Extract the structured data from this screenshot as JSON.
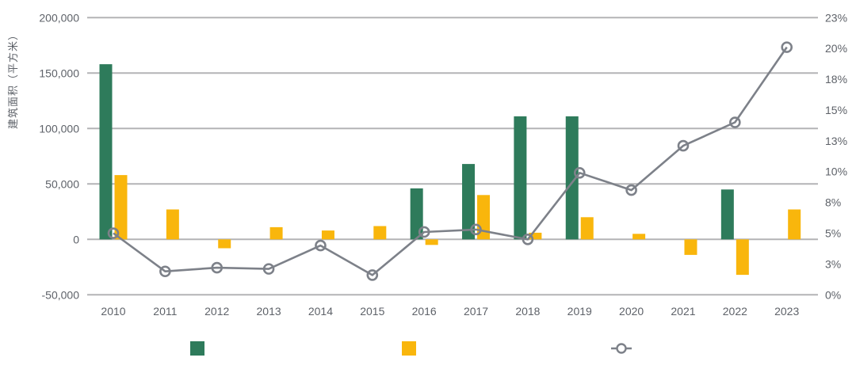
{
  "chart_data": {
    "type": "bar",
    "subtype": "grouped bars with dual-axis line overlay",
    "title": "",
    "categories": [
      "2010",
      "2011",
      "2012",
      "2013",
      "2014",
      "2015",
      "2016",
      "2017",
      "2018",
      "2019",
      "2020",
      "2021",
      "2022",
      "2023"
    ],
    "series": [
      {
        "name": "green-bars",
        "type": "bar",
        "axis": "left",
        "color": "#2E7B5B",
        "values": [
          158000,
          null,
          null,
          null,
          null,
          null,
          46000,
          68000,
          111000,
          111000,
          null,
          null,
          45000,
          null
        ]
      },
      {
        "name": "yellow-bars",
        "type": "bar",
        "axis": "left",
        "color": "#F9B60C",
        "values": [
          58000,
          27000,
          -8000,
          11000,
          8000,
          12000,
          -5000,
          40000,
          6000,
          20000,
          5000,
          -14000,
          -32000,
          27000
        ]
      },
      {
        "name": "percent-line",
        "type": "line",
        "axis": "right",
        "color": "#7D8189",
        "values": [
          5.0,
          1.9,
          2.2,
          2.1,
          4.0,
          1.6,
          5.1,
          5.3,
          4.5,
          9.9,
          8.5,
          12.1,
          14.0,
          20.1
        ]
      }
    ],
    "left_axis": {
      "title": "建筑面积（平方米）",
      "ticks": [
        "200,000",
        "150,000",
        "100,000",
        "50,000",
        "0",
        "-50,000"
      ],
      "tick_values": [
        200000,
        150000,
        100000,
        50000,
        0,
        -50000
      ],
      "range": [
        -50000,
        200000
      ]
    },
    "right_axis": {
      "ticks": [
        "23%",
        "20%",
        "18%",
        "15%",
        "13%",
        "10%",
        "8%",
        "5%",
        "3%",
        "0%"
      ],
      "tick_values": [
        22.5,
        20,
        17.5,
        15,
        12.5,
        10,
        7.5,
        5,
        2.5,
        0
      ],
      "range": [
        0,
        22.5
      ],
      "unit": "%"
    },
    "legend": [
      {
        "swatch": "green-square",
        "label": ""
      },
      {
        "swatch": "yellow-square",
        "label": ""
      },
      {
        "swatch": "gray-line-circle-marker",
        "label": ""
      }
    ],
    "grid": true,
    "legend_position": "bottom"
  },
  "colors": {
    "green": "#2E7B5B",
    "yellow": "#F9B60C",
    "line_gray": "#7D8189",
    "gridline": "#B4B4B6",
    "axis_text": "#5E6269",
    "background": "#FFFFFF"
  }
}
